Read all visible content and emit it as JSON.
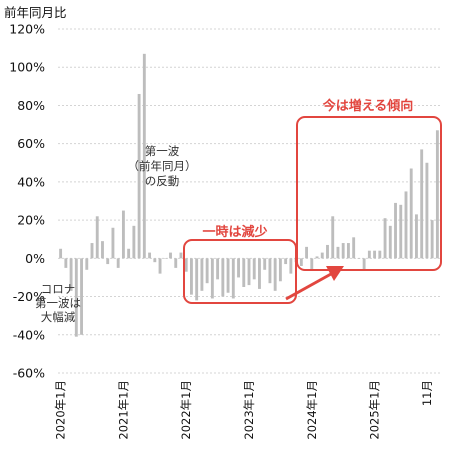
{
  "chart_data": {
    "type": "bar",
    "ylabel": "前年同月比",
    "y_ticks": [
      "120%",
      "100%",
      "80%",
      "60%",
      "40%",
      "20%",
      "0%",
      "-20%",
      "-40%",
      "-60%"
    ],
    "y_tick_values": [
      120,
      100,
      80,
      60,
      40,
      20,
      0,
      -20,
      -40,
      -60
    ],
    "ylim": [
      -60,
      120
    ],
    "x_tick_labels": [
      "2020年1月",
      "2021年1月",
      "2022年1月",
      "2023年1月",
      "2024年1月",
      "2025年1月",
      "11月"
    ],
    "x_tick_indices": [
      0,
      12,
      24,
      36,
      48,
      60,
      70
    ],
    "bar_color": "#bdbdbd",
    "highlight_color": "#e2463f",
    "values": [
      5,
      -5,
      -17,
      -41,
      -40,
      -6,
      8,
      22,
      9,
      -3,
      16,
      -5,
      25,
      5,
      17,
      86,
      107,
      3,
      -2,
      -8,
      0,
      3,
      -5,
      3,
      -7,
      -19,
      -22,
      -17,
      -13,
      -21,
      -11,
      -20,
      -18,
      -21,
      -10,
      -15,
      -14,
      -11,
      -16,
      -6,
      -13,
      -17,
      -12,
      -3,
      -8,
      -2,
      -4,
      6,
      -6,
      1,
      3,
      7,
      22,
      6,
      8,
      8,
      11,
      0,
      -6,
      4,
      4,
      4,
      21,
      17,
      29,
      28,
      35,
      47,
      23,
      57,
      50,
      20,
      67
    ],
    "annotations": {
      "corona": [
        "コロナ",
        "第一波は",
        "大幅減"
      ],
      "rebound": [
        "第一波",
        "（前年同月）",
        "の反動"
      ],
      "decrease": "一時は減少",
      "increase": "今は増える傾向"
    }
  }
}
